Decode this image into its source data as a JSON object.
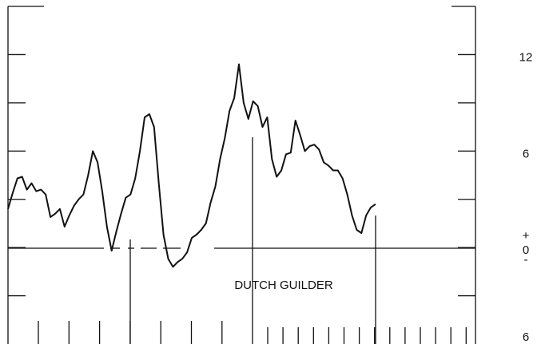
{
  "chart_data": {
    "type": "line",
    "annotation": "DUTCH GUILDER",
    "color": "#111111",
    "ylim": [
      -6,
      15
    ],
    "yticks": [
      12,
      6,
      0,
      {
        "value": -6,
        "label": "6"
      }
    ],
    "minor_yticks": [
      -3,
      3,
      9,
      15
    ],
    "zero_signs": [
      "+",
      "-"
    ],
    "values": [
      2.4,
      3.4,
      4.3,
      4.4,
      3.6,
      4.0,
      3.5,
      3.6,
      3.3,
      1.9,
      2.1,
      2.4,
      1.3,
      2.0,
      2.6,
      3.0,
      3.3,
      4.5,
      6.0,
      5.3,
      3.5,
      1.3,
      -0.2,
      1.0,
      2.1,
      3.1,
      3.3,
      4.3,
      6.0,
      8.1,
      8.3,
      7.5,
      4.0,
      0.8,
      -0.7,
      -1.2,
      -0.9,
      -0.7,
      -0.3,
      0.6,
      0.8,
      1.1,
      1.5,
      2.8,
      3.8,
      5.5,
      6.8,
      8.5,
      9.3,
      11.4,
      9.0,
      8.0,
      9.1,
      8.8,
      7.5,
      8.1,
      5.5,
      4.4,
      4.8,
      5.8,
      5.9,
      7.9,
      7.0,
      6.0,
      6.3,
      6.4,
      6.1,
      5.3,
      5.1,
      4.8,
      4.8,
      4.3,
      3.3,
      2.0,
      1.1,
      0.9,
      2.0,
      2.5,
      2.7
    ]
  }
}
